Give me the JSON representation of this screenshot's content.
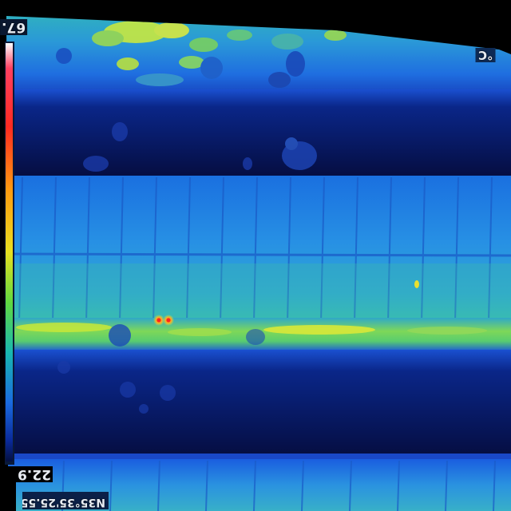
{
  "overlay": {
    "temp_max": "67.",
    "temp_min": "22.9",
    "unit": "°C",
    "gps": "N35°35'25.55\""
  },
  "palette": {
    "name": "rainbow-ironbow",
    "stops": [
      "#ffffff",
      "#ff2a55",
      "#ff7a1a",
      "#ffd21a",
      "#b8ff2a",
      "#2ad46a",
      "#18a8c8",
      "#1860e8",
      "#0a2aa8",
      "#040c40"
    ]
  },
  "colors": {
    "background": "#000000",
    "cold": "#050d3f",
    "panel_base": "#1f80e0",
    "panel_warm": "#3fc0a0",
    "hot_spot": "#ff3020"
  }
}
